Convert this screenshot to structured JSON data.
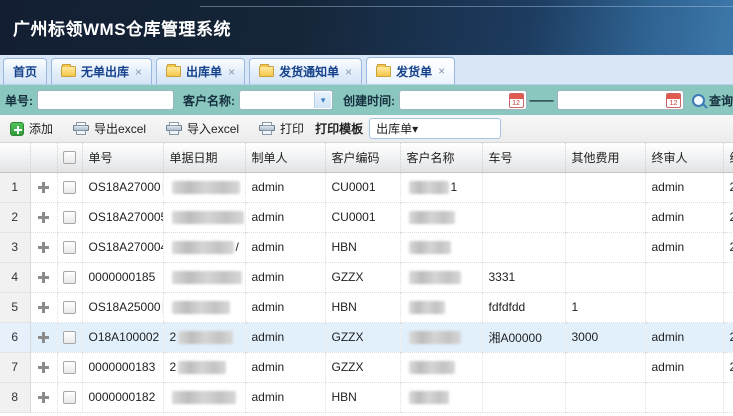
{
  "app": {
    "title": "广州标领WMS仓库管理系统"
  },
  "icons": {
    "close": "×",
    "chevron_down": "▾",
    "range_dash": "——"
  },
  "tabs": [
    {
      "label": "首页"
    },
    {
      "label": "无单出库"
    },
    {
      "label": "出库单"
    },
    {
      "label": "发货通知单"
    },
    {
      "label": "发货单"
    }
  ],
  "search": {
    "order_no_label": "单号:",
    "customer_label": "客户名称:",
    "created_label": "创建时间:",
    "search_label": "查询"
  },
  "toolbar": {
    "add": "添加",
    "export_excel": "导出excel",
    "import_excel": "导入excel",
    "print": "打印",
    "template_label": "打印模板",
    "template_value": "出库单"
  },
  "table": {
    "headers": [
      "单号",
      "单据日期",
      "制单人",
      "客户编码",
      "客户名称",
      "车号",
      "其他费用",
      "终审人",
      "终审日期"
    ],
    "rows": [
      {
        "num": "1",
        "order": "OS18A27000",
        "order_blur": 38,
        "date_prefix": "",
        "date_blur": 68,
        "date_suffix": "",
        "maker": "admin",
        "code": "CU0001",
        "name_blur": 40,
        "name_suffix": "1",
        "vehicle": "",
        "fees": "",
        "reviewer": "admin",
        "review": "2",
        "highlight": false
      },
      {
        "num": "2",
        "order": "OS18A270005",
        "order_blur": 20,
        "date_blur": 72,
        "date_suffix": "",
        "maker": "admin",
        "code": "CU0001",
        "name_blur": 46,
        "name_suffix": "",
        "vehicle": "",
        "fees": "",
        "reviewer": "admin",
        "review": "2",
        "highlight": false
      },
      {
        "num": "3",
        "order": "OS18A270004",
        "order_blur": 0,
        "date_blur": 62,
        "date_suffix": "/",
        "maker": "admin",
        "code": "HBN",
        "name_blur": 42,
        "name_suffix": "",
        "vehicle": "",
        "fees": "",
        "reviewer": "admin",
        "review": "2",
        "highlight": false
      },
      {
        "num": "4",
        "order": "0000000185",
        "order_blur": 0,
        "date_blur": 70,
        "date_suffix": "",
        "maker": "admin",
        "code": "GZZX",
        "name_blur": 52,
        "name_suffix": "",
        "vehicle": "3331",
        "fees": "",
        "reviewer": "",
        "review": "",
        "highlight": false
      },
      {
        "num": "5",
        "order": "OS18A25000",
        "order_blur": 16,
        "date_blur": 58,
        "date_suffix": "",
        "maker": "admin",
        "code": "HBN",
        "name_blur": 36,
        "name_suffix": "",
        "vehicle": "fdfdfdd",
        "fees": "1",
        "reviewer": "",
        "review": "",
        "highlight": false
      },
      {
        "num": "6",
        "order": "O18A100002",
        "order_blur": 0,
        "date_prefix": "2",
        "date_blur": 55,
        "date_suffix": "",
        "maker": "admin",
        "code": "GZZX",
        "name_blur": 52,
        "name_suffix": "",
        "vehicle": "湘A00000",
        "fees": "3000",
        "reviewer": "admin",
        "review": "2",
        "highlight": true
      },
      {
        "num": "7",
        "order": "0000000183",
        "order_blur": 0,
        "date_prefix": "2",
        "date_blur": 48,
        "date_suffix": "",
        "maker": "admin",
        "code": "GZZX",
        "name_blur": 46,
        "name_suffix": "",
        "vehicle": "",
        "fees": "",
        "reviewer": "admin",
        "review": "2",
        "highlight": false
      },
      {
        "num": "8",
        "order": "0000000182",
        "order_blur": 0,
        "date_blur": 64,
        "date_suffix": "",
        "maker": "admin",
        "code": "HBN",
        "name_blur": 40,
        "name_suffix": "",
        "vehicle": "",
        "fees": "",
        "reviewer": "",
        "review": "",
        "highlight": false
      }
    ]
  }
}
